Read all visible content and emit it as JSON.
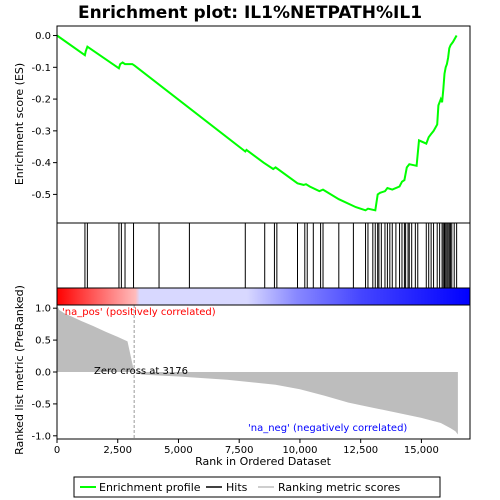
{
  "chart_data": {
    "type": "line",
    "title": "Enrichment plot: IL1%NETPATH%IL1",
    "x_axis": {
      "label": "Rank in Ordered Dataset",
      "range": [
        0,
        17000
      ],
      "ticks": [
        0,
        2500,
        5000,
        7500,
        10000,
        12500,
        15000
      ],
      "tick_labels": [
        "0",
        "2,500",
        "5,000",
        "7,500",
        "10,000",
        "12,500",
        "15,000"
      ]
    },
    "enrichment_panel": {
      "ylabel": "Enrichment score (ES)",
      "ylim": [
        -0.59,
        0.03
      ],
      "y_ticks": [
        0.0,
        -0.1,
        -0.2,
        -0.3,
        -0.4,
        -0.5
      ],
      "y_tick_labels": [
        "0.0",
        "-0.1",
        "-0.2",
        "-0.3",
        "-0.4",
        "-0.5"
      ],
      "series": [
        {
          "name": "Enrichment profile",
          "color": "#00ff00",
          "x": [
            0,
            1150,
            1180,
            1250,
            2550,
            2600,
            2700,
            2800,
            3100,
            3200,
            7750,
            7800,
            8500,
            8900,
            9000,
            9900,
            10150,
            10250,
            10400,
            10800,
            10950,
            11600,
            12300,
            12700,
            12800,
            13100,
            13200,
            13300,
            13500,
            13600,
            13800,
            14100,
            14200,
            14300,
            14400,
            14500,
            14800,
            14900,
            15200,
            15300,
            15400,
            15500,
            15650,
            15700,
            15800,
            15850,
            15900,
            15950,
            16000,
            16050,
            16100,
            16150,
            16200,
            16300,
            16450
          ],
          "y": [
            0.0,
            -0.062,
            -0.05,
            -0.035,
            -0.103,
            -0.09,
            -0.085,
            -0.09,
            -0.09,
            -0.095,
            -0.365,
            -0.36,
            -0.4,
            -0.42,
            -0.415,
            -0.465,
            -0.47,
            -0.468,
            -0.475,
            -0.49,
            -0.485,
            -0.515,
            -0.54,
            -0.55,
            -0.545,
            -0.55,
            -0.5,
            -0.495,
            -0.49,
            -0.48,
            -0.485,
            -0.475,
            -0.46,
            -0.455,
            -0.415,
            -0.405,
            -0.41,
            -0.33,
            -0.34,
            -0.32,
            -0.31,
            -0.3,
            -0.28,
            -0.22,
            -0.2,
            -0.21,
            -0.17,
            -0.12,
            -0.1,
            -0.09,
            -0.07,
            -0.04,
            -0.03,
            -0.02,
            0.0
          ]
        }
      ]
    },
    "hits": {
      "name": "Hits",
      "positions": [
        1150,
        1250,
        2550,
        2650,
        2800,
        3150,
        4200,
        5450,
        7750,
        8550,
        8950,
        9050,
        9900,
        10200,
        10300,
        10550,
        10850,
        10950,
        11600,
        12200,
        12700,
        12800,
        13000,
        13100,
        13200,
        13250,
        13350,
        13500,
        13600,
        13700,
        13800,
        13950,
        14100,
        14200,
        14300,
        14350,
        14450,
        14500,
        14600,
        14750,
        14850,
        15200,
        15300,
        15400,
        15500,
        15650,
        15750,
        15850,
        15900,
        15950,
        16000,
        16050,
        16100,
        16150,
        16200,
        16250,
        16350,
        16450
      ]
    },
    "heatmap_bar": {
      "start_color": "#ff0000",
      "end_color": "#0000ff",
      "mid_color": "#d8d8ff"
    },
    "ranked_metric_panel": {
      "ylabel": "Ranked list metric (PreRanked)",
      "ylim": [
        -1.05,
        1.05
      ],
      "y_ticks": [
        1.0,
        0.5,
        0.0,
        -0.5,
        -1.0
      ],
      "y_tick_labels": [
        "1.0",
        "0.5",
        "0.0",
        "-0.5",
        "-1.0"
      ],
      "series": [
        {
          "name": "Ranking metric scores",
          "color": "#bdbdbd",
          "x": [
            0,
            100,
            300,
            600,
            1000,
            1500,
            2000,
            2500,
            2900,
            3176,
            3500,
            5000,
            7000,
            9000,
            10000,
            11000,
            12000,
            13000,
            14000,
            15000,
            15800,
            16200,
            16400,
            16500
          ],
          "y": [
            1.05,
            0.97,
            0.92,
            0.87,
            0.8,
            0.72,
            0.63,
            0.55,
            0.48,
            0.0,
            -0.04,
            -0.07,
            -0.12,
            -0.2,
            -0.27,
            -0.37,
            -0.48,
            -0.56,
            -0.64,
            -0.72,
            -0.8,
            -0.88,
            -0.93,
            -0.98
          ]
        }
      ],
      "annotations": {
        "pos_label": "'na_pos' (positively correlated)",
        "neg_label": "'na_neg' (negatively correlated)",
        "zero_cross": "Zero cross at 3176",
        "zero_cross_x": 3176
      }
    },
    "legend": {
      "placement": "bottom",
      "entries": [
        {
          "label": "Enrichment profile",
          "color": "#00ff00"
        },
        {
          "label": "Hits",
          "color": "#000000"
        },
        {
          "label": "Ranking metric scores",
          "color": "#bdbdbd"
        }
      ]
    }
  }
}
